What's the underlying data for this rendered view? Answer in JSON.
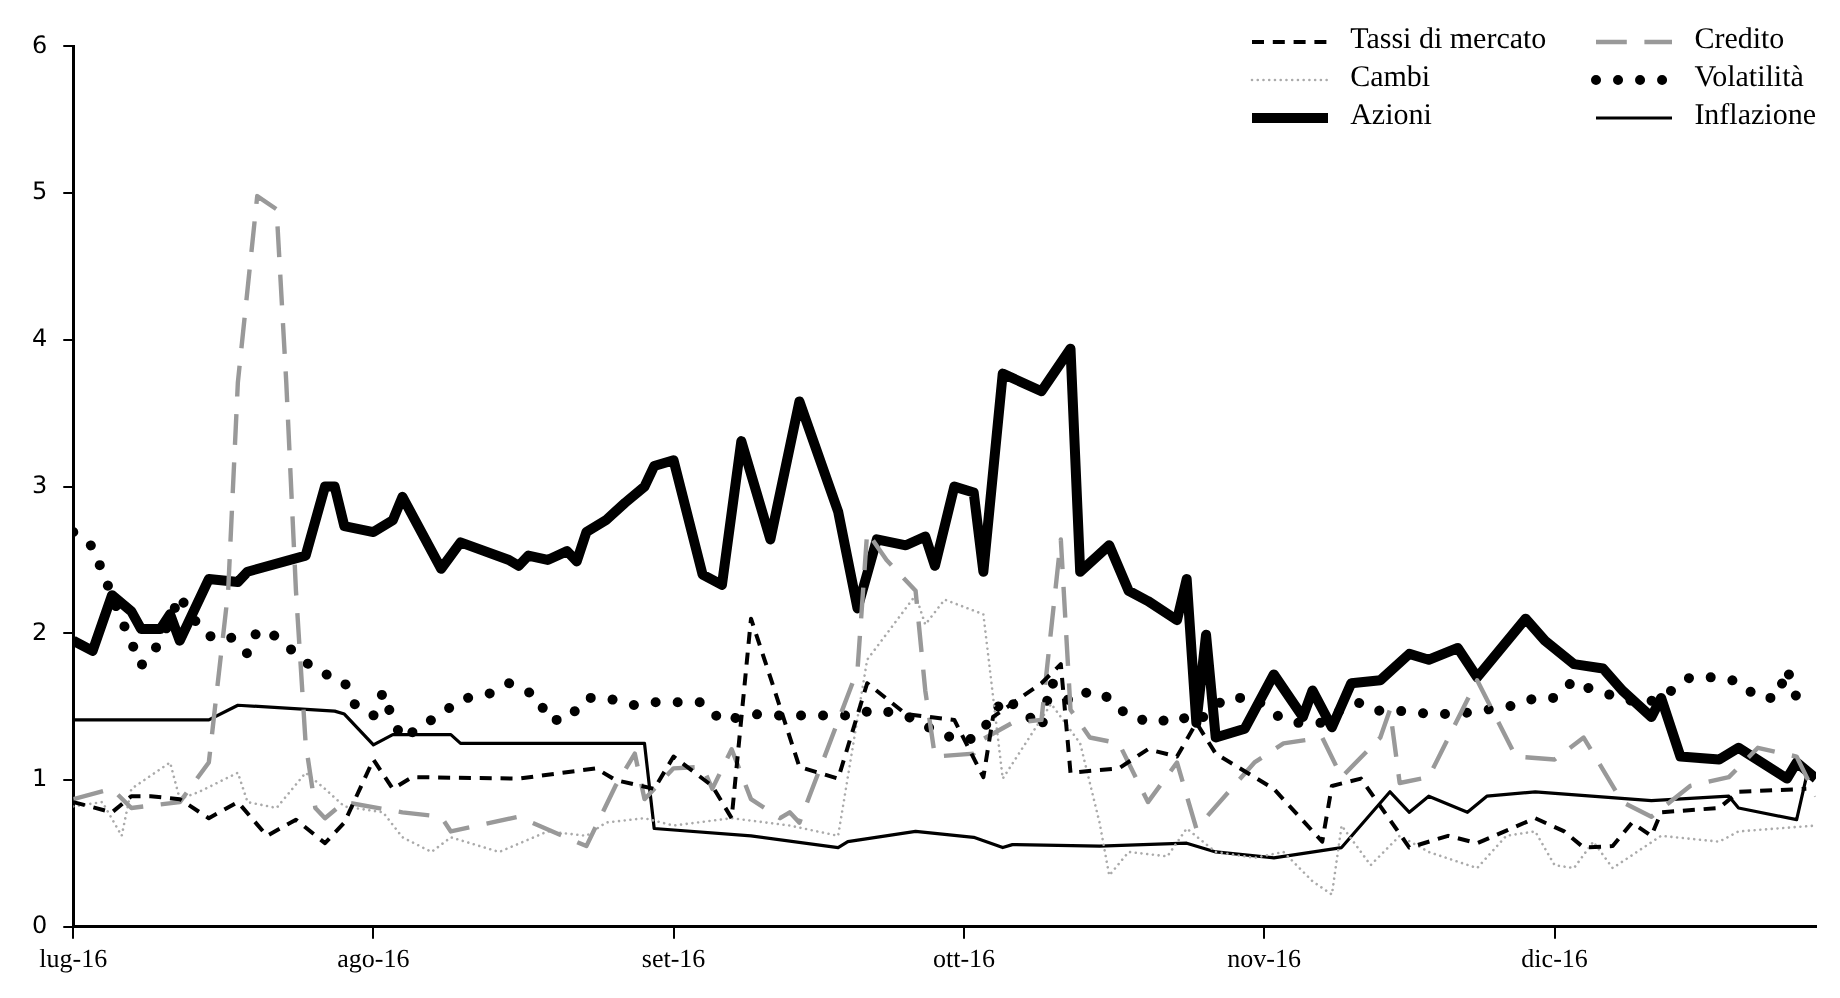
{
  "chart_data": {
    "type": "line",
    "legend": "top right",
    "grid": false,
    "ylim": [
      0,
      6
    ],
    "yticks": [
      0,
      1,
      2,
      3,
      4,
      5,
      6
    ],
    "xlim": [
      "2016-07-01",
      "2016-12-28"
    ],
    "xticks": [
      {
        "value": "2016-07-01",
        "label": "lug-16"
      },
      {
        "value": "2016-08-01",
        "label": "ago-16"
      },
      {
        "value": "2016-09-01",
        "label": "set-16"
      },
      {
        "value": "2016-10-01",
        "label": "ott-16"
      },
      {
        "value": "2016-11-01",
        "label": "nov-16"
      },
      {
        "value": "2016-12-01",
        "label": "dic-16"
      }
    ],
    "series": [
      {
        "name": "Tassi di mercato",
        "color": "#000000",
        "line_style": "dashed",
        "x": [
          "2016-07-01",
          "2016-07-05",
          "2016-07-07",
          "2016-07-09",
          "2016-07-12",
          "2016-07-15",
          "2016-07-18",
          "2016-07-21",
          "2016-07-24",
          "2016-07-27",
          "2016-07-29",
          "2016-08-01",
          "2016-08-03",
          "2016-08-05",
          "2016-08-16",
          "2016-08-24",
          "2016-08-26",
          "2016-08-30",
          "2016-09-01",
          "2016-09-05",
          "2016-09-07",
          "2016-09-09",
          "2016-09-11",
          "2016-09-14",
          "2016-09-18",
          "2016-09-21",
          "2016-09-25",
          "2016-09-30",
          "2016-10-03",
          "2016-10-04",
          "2016-10-09",
          "2016-10-11",
          "2016-10-12",
          "2016-10-17",
          "2016-10-20",
          "2016-10-23",
          "2016-10-25",
          "2016-10-27",
          "2016-10-31",
          "2016-11-02",
          "2016-11-07",
          "2016-11-08",
          "2016-11-11",
          "2016-11-16",
          "2016-11-20",
          "2016-11-23",
          "2016-11-29",
          "2016-12-02",
          "2016-12-04",
          "2016-12-07",
          "2016-12-09",
          "2016-12-11",
          "2016-12-12",
          "2016-12-18",
          "2016-12-20",
          "2016-12-27"
        ],
        "values": [
          0.85,
          0.78,
          0.89,
          0.89,
          0.87,
          0.74,
          0.85,
          0.62,
          0.73,
          0.57,
          0.71,
          1.14,
          0.94,
          1.02,
          1.01,
          1.08,
          1.0,
          0.94,
          1.16,
          0.96,
          0.74,
          2.1,
          1.7,
          1.09,
          1.01,
          1.66,
          1.45,
          1.41,
          1.02,
          1.43,
          1.66,
          1.79,
          1.05,
          1.08,
          1.21,
          1.16,
          1.39,
          1.18,
          1.02,
          0.94,
          0.58,
          0.96,
          1.01,
          0.54,
          0.62,
          0.57,
          0.74,
          0.65,
          0.54,
          0.55,
          0.71,
          0.62,
          0.78,
          0.81,
          0.92,
          0.94
        ]
      },
      {
        "name": "Credito",
        "color": "#999999",
        "line_style": "dashed",
        "x": [
          "2016-07-01",
          "2016-07-05",
          "2016-07-07",
          "2016-07-12",
          "2016-07-15",
          "2016-07-17",
          "2016-07-18",
          "2016-07-20",
          "2016-07-22",
          "2016-07-23",
          "2016-07-24",
          "2016-07-25",
          "2016-07-26",
          "2016-07-27",
          "2016-07-29",
          "2016-08-04",
          "2016-08-08",
          "2016-08-09",
          "2016-08-16",
          "2016-08-23",
          "2016-08-26",
          "2016-08-28",
          "2016-08-29",
          "2016-09-01",
          "2016-09-04",
          "2016-09-05",
          "2016-09-07",
          "2016-09-09",
          "2016-09-12",
          "2016-09-13",
          "2016-09-14",
          "2016-09-20",
          "2016-09-21",
          "2016-09-23",
          "2016-09-26",
          "2016-09-27",
          "2016-09-28",
          "2016-10-02",
          "2016-10-03",
          "2016-10-06",
          "2016-10-09",
          "2016-10-11",
          "2016-10-12",
          "2016-10-14",
          "2016-10-17",
          "2016-10-20",
          "2016-10-23",
          "2016-10-25",
          "2016-10-31",
          "2016-11-03",
          "2016-11-07",
          "2016-11-09",
          "2016-11-13",
          "2016-11-14",
          "2016-11-15",
          "2016-11-18",
          "2016-11-23",
          "2016-11-27",
          "2016-12-01",
          "2016-12-04",
          "2016-12-08",
          "2016-12-11",
          "2016-12-15",
          "2016-12-19",
          "2016-12-22",
          "2016-12-26",
          "2016-12-28"
        ],
        "values": [
          0.87,
          0.94,
          0.81,
          0.85,
          1.12,
          2.29,
          3.71,
          4.98,
          4.89,
          3.71,
          2.29,
          1.25,
          0.81,
          0.74,
          0.85,
          0.78,
          0.75,
          0.65,
          0.75,
          0.55,
          0.96,
          1.18,
          0.87,
          1.08,
          1.09,
          0.94,
          1.21,
          0.87,
          0.74,
          0.78,
          0.71,
          1.75,
          2.69,
          2.5,
          2.29,
          1.61,
          1.16,
          1.18,
          1.28,
          1.39,
          1.41,
          2.64,
          1.48,
          1.29,
          1.25,
          0.85,
          1.12,
          0.67,
          1.12,
          1.25,
          1.29,
          1.02,
          1.29,
          1.48,
          0.98,
          1.02,
          1.68,
          1.16,
          1.14,
          1.29,
          0.85,
          0.75,
          0.96,
          1.02,
          1.22,
          1.16,
          0.89
        ]
      },
      {
        "name": "Cambi",
        "color": "#aaaaaa",
        "line_style": "dotted",
        "x": [
          "2016-07-01",
          "2016-07-04",
          "2016-07-06",
          "2016-07-07",
          "2016-07-11",
          "2016-07-12",
          "2016-07-14",
          "2016-07-18",
          "2016-07-19",
          "2016-07-22",
          "2016-07-25",
          "2016-07-27",
          "2016-07-29",
          "2016-08-02",
          "2016-08-04",
          "2016-08-07",
          "2016-08-09",
          "2016-08-14",
          "2016-08-19",
          "2016-08-23",
          "2016-08-25",
          "2016-08-29",
          "2016-09-01",
          "2016-09-07",
          "2016-09-13",
          "2016-09-18",
          "2016-09-21",
          "2016-09-26",
          "2016-09-27",
          "2016-09-29",
          "2016-10-03",
          "2016-10-05",
          "2016-10-10",
          "2016-10-13",
          "2016-10-15",
          "2016-10-16",
          "2016-10-18",
          "2016-10-22",
          "2016-10-24",
          "2016-10-27",
          "2016-10-31",
          "2016-11-03",
          "2016-11-06",
          "2016-11-08",
          "2016-11-09",
          "2016-11-12",
          "2016-11-15",
          "2016-11-18",
          "2016-11-23",
          "2016-11-26",
          "2016-11-29",
          "2016-12-01",
          "2016-12-03",
          "2016-12-05",
          "2016-12-07",
          "2016-12-12",
          "2016-12-18",
          "2016-12-20",
          "2016-12-28"
        ],
        "values": [
          0.82,
          0.85,
          0.62,
          0.94,
          1.12,
          0.87,
          0.92,
          1.05,
          0.85,
          0.81,
          1.05,
          0.94,
          0.82,
          0.78,
          0.61,
          0.51,
          0.61,
          0.51,
          0.65,
          0.62,
          0.71,
          0.74,
          0.69,
          0.74,
          0.69,
          0.62,
          1.82,
          2.26,
          2.06,
          2.23,
          2.13,
          1.01,
          1.52,
          1.25,
          0.71,
          0.35,
          0.51,
          0.48,
          0.67,
          0.51,
          0.47,
          0.51,
          0.31,
          0.22,
          0.69,
          0.42,
          0.62,
          0.51,
          0.4,
          0.62,
          0.65,
          0.42,
          0.4,
          0.58,
          0.4,
          0.62,
          0.58,
          0.65,
          0.69
        ]
      },
      {
        "name": "Volatilità",
        "color": "#000000",
        "line_style": "dotted",
        "x": [
          "2016-07-01",
          "2016-07-03",
          "2016-07-04",
          "2016-07-06",
          "2016-07-07",
          "2016-07-08",
          "2016-07-10",
          "2016-07-11",
          "2016-07-12",
          "2016-07-13",
          "2016-07-15",
          "2016-07-17",
          "2016-07-19",
          "2016-07-20",
          "2016-07-22",
          "2016-07-24",
          "2016-07-26",
          "2016-07-29",
          "2016-07-30",
          "2016-08-01",
          "2016-08-02",
          "2016-08-03",
          "2016-08-04",
          "2016-08-06",
          "2016-08-08",
          "2016-08-10",
          "2016-08-13",
          "2016-08-15",
          "2016-08-18",
          "2016-08-19",
          "2016-08-21",
          "2016-08-23",
          "2016-08-25",
          "2016-08-28",
          "2016-08-30",
          "2016-09-01",
          "2016-09-04",
          "2016-09-06",
          "2016-09-09",
          "2016-09-12",
          "2016-09-14",
          "2016-09-16",
          "2016-09-19",
          "2016-09-22",
          "2016-09-25",
          "2016-09-27",
          "2016-09-30",
          "2016-10-02",
          "2016-10-04",
          "2016-10-05",
          "2016-10-07",
          "2016-10-09",
          "2016-10-10",
          "2016-10-12",
          "2016-10-14",
          "2016-10-16",
          "2016-10-18",
          "2016-10-21",
          "2016-10-23",
          "2016-10-25",
          "2016-10-28",
          "2016-10-31",
          "2016-11-02",
          "2016-11-04",
          "2016-11-07",
          "2016-11-09",
          "2016-11-11",
          "2016-11-13",
          "2016-11-16",
          "2016-11-18",
          "2016-11-21",
          "2016-11-24",
          "2016-11-27",
          "2016-11-29",
          "2016-12-01",
          "2016-12-03",
          "2016-12-05",
          "2016-12-08",
          "2016-12-10",
          "2016-12-12",
          "2016-12-15",
          "2016-12-18",
          "2016-12-20",
          "2016-12-22",
          "2016-12-24",
          "2016-12-25",
          "2016-12-26"
        ],
        "values": [
          2.69,
          2.59,
          2.42,
          2.09,
          1.94,
          1.78,
          1.94,
          2.09,
          2.26,
          2.13,
          1.98,
          1.99,
          1.86,
          2.02,
          1.98,
          1.86,
          1.75,
          1.67,
          1.52,
          1.44,
          1.6,
          1.41,
          1.28,
          1.37,
          1.45,
          1.55,
          1.59,
          1.66,
          1.57,
          1.41,
          1.41,
          1.56,
          1.56,
          1.51,
          1.53,
          1.53,
          1.53,
          1.4,
          1.45,
          1.44,
          1.44,
          1.44,
          1.44,
          1.48,
          1.44,
          1.37,
          1.28,
          1.28,
          1.43,
          1.56,
          1.48,
          1.35,
          1.67,
          1.53,
          1.61,
          1.56,
          1.43,
          1.39,
          1.44,
          1.39,
          1.56,
          1.56,
          1.45,
          1.39,
          1.39,
          1.48,
          1.53,
          1.47,
          1.47,
          1.45,
          1.45,
          1.48,
          1.51,
          1.56,
          1.56,
          1.68,
          1.61,
          1.56,
          1.52,
          1.56,
          1.7,
          1.7,
          1.67,
          1.56,
          1.56,
          1.76,
          1.56
        ]
      },
      {
        "name": "Azioni",
        "color": "#000000",
        "line_style": "solid",
        "x": [
          "2016-07-01",
          "2016-07-03",
          "2016-07-05",
          "2016-07-07",
          "2016-07-08",
          "2016-07-10",
          "2016-07-11",
          "2016-07-12",
          "2016-07-15",
          "2016-07-18",
          "2016-07-19",
          "2016-07-25",
          "2016-07-27",
          "2016-07-28",
          "2016-07-29",
          "2016-08-01",
          "2016-08-03",
          "2016-08-04",
          "2016-08-08",
          "2016-08-10",
          "2016-08-15",
          "2016-08-16",
          "2016-08-17",
          "2016-08-19",
          "2016-08-21",
          "2016-08-22",
          "2016-08-23",
          "2016-08-25",
          "2016-08-27",
          "2016-08-29",
          "2016-08-30",
          "2016-09-01",
          "2016-09-04",
          "2016-09-06",
          "2016-09-08",
          "2016-09-11",
          "2016-09-14",
          "2016-09-18",
          "2016-09-20",
          "2016-09-22",
          "2016-09-25",
          "2016-09-27",
          "2016-09-28",
          "2016-09-30",
          "2016-10-02",
          "2016-10-03",
          "2016-10-05",
          "2016-10-09",
          "2016-10-12",
          "2016-10-13",
          "2016-10-16",
          "2016-10-18",
          "2016-10-20",
          "2016-10-23",
          "2016-10-24",
          "2016-10-25",
          "2016-10-26",
          "2016-10-27",
          "2016-10-30",
          "2016-11-02",
          "2016-11-05",
          "2016-11-06",
          "2016-11-08",
          "2016-11-10",
          "2016-11-13",
          "2016-11-16",
          "2016-11-18",
          "2016-11-21",
          "2016-11-23",
          "2016-11-28",
          "2016-11-30",
          "2016-12-03",
          "2016-12-06",
          "2016-12-08",
          "2016-12-11",
          "2016-12-12",
          "2016-12-14",
          "2016-12-18",
          "2016-12-20",
          "2016-12-25",
          "2016-12-26",
          "2016-12-28"
        ],
        "values": [
          1.95,
          1.88,
          2.26,
          2.15,
          2.03,
          2.03,
          2.13,
          1.95,
          2.37,
          2.35,
          2.42,
          2.53,
          3.0,
          3.0,
          2.73,
          2.69,
          2.77,
          2.93,
          2.44,
          2.62,
          2.5,
          2.46,
          2.53,
          2.5,
          2.56,
          2.49,
          2.69,
          2.77,
          2.89,
          3.0,
          3.14,
          3.18,
          2.4,
          2.33,
          3.31,
          2.64,
          3.58,
          2.83,
          2.17,
          2.64,
          2.6,
          2.66,
          2.46,
          3.0,
          2.96,
          2.42,
          3.77,
          3.65,
          3.94,
          2.42,
          2.6,
          2.29,
          2.22,
          2.09,
          2.37,
          1.39,
          1.99,
          1.29,
          1.35,
          1.72,
          1.43,
          1.61,
          1.36,
          1.66,
          1.68,
          1.86,
          1.82,
          1.9,
          1.7,
          2.1,
          1.95,
          1.79,
          1.76,
          1.61,
          1.43,
          1.56,
          1.16,
          1.14,
          1.22,
          1.01,
          1.12,
          1.01
        ]
      },
      {
        "name": "Inflazione",
        "color": "#000000",
        "line_style": "solid",
        "x": [
          "2016-07-01",
          "2016-07-15",
          "2016-07-18",
          "2016-07-28",
          "2016-07-29",
          "2016-08-01",
          "2016-08-03",
          "2016-08-09",
          "2016-08-10",
          "2016-08-29",
          "2016-08-30",
          "2016-09-09",
          "2016-09-18",
          "2016-09-19",
          "2016-09-26",
          "2016-10-02",
          "2016-10-05",
          "2016-10-06",
          "2016-10-15",
          "2016-10-24",
          "2016-10-27",
          "2016-11-02",
          "2016-11-09",
          "2016-11-14",
          "2016-11-16",
          "2016-11-18",
          "2016-11-22",
          "2016-11-24",
          "2016-11-29",
          "2016-12-11",
          "2016-12-19",
          "2016-12-20",
          "2016-12-26",
          "2016-12-27"
        ],
        "values": [
          1.41,
          1.41,
          1.51,
          1.47,
          1.45,
          1.24,
          1.31,
          1.31,
          1.25,
          1.25,
          0.67,
          0.62,
          0.54,
          0.58,
          0.65,
          0.61,
          0.54,
          0.56,
          0.55,
          0.57,
          0.51,
          0.47,
          0.54,
          0.92,
          0.78,
          0.89,
          0.78,
          0.89,
          0.92,
          0.86,
          0.89,
          0.81,
          0.73,
          1.02
        ]
      }
    ]
  }
}
